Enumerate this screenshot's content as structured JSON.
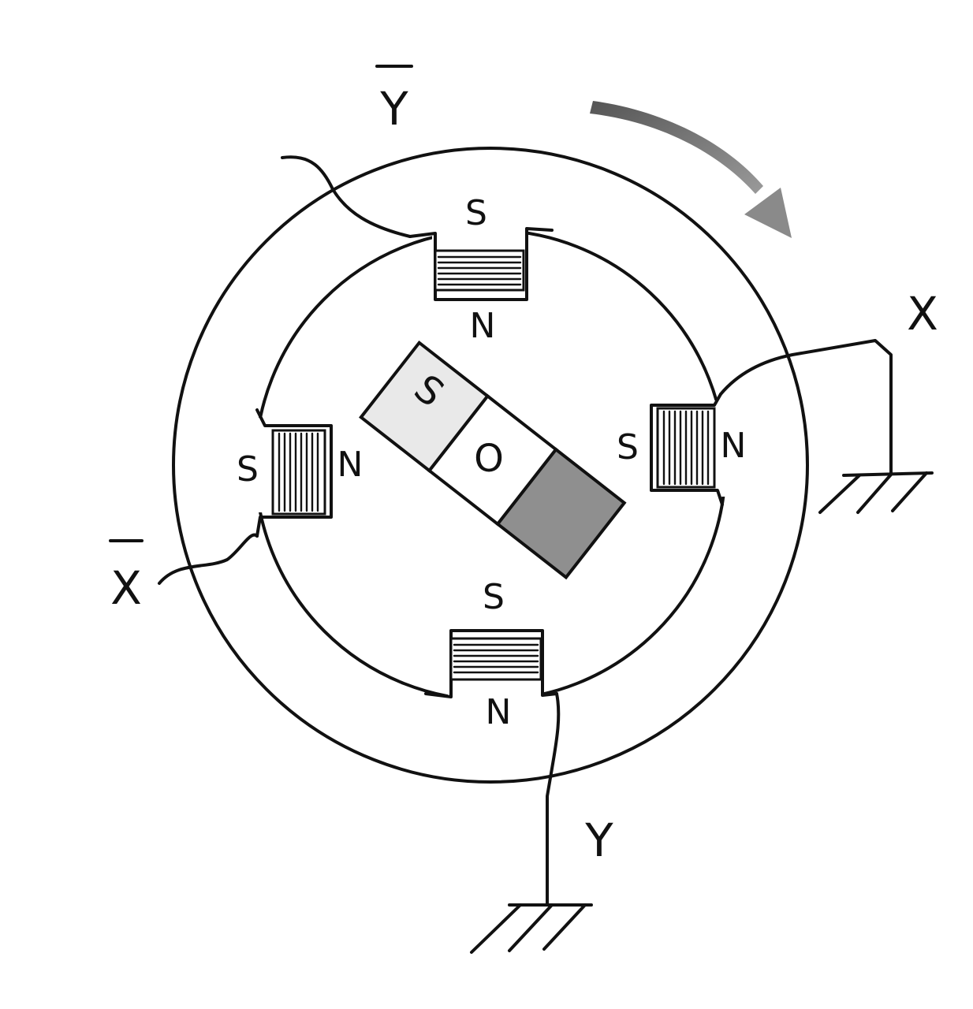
{
  "terminals": {
    "y_bar": "Y",
    "x": "X",
    "x_bar": "X",
    "y": "Y"
  },
  "poles": {
    "top": {
      "outer": "S",
      "inner": "N"
    },
    "left": {
      "outer": "S",
      "inner": "N"
    },
    "right": {
      "inner": "S",
      "outer": "N"
    },
    "bottom": {
      "outer": "S",
      "inner": "N"
    }
  },
  "rotor": {
    "south": "S",
    "center": "O"
  },
  "colors": {
    "ink": "#111111",
    "rotor_south_fill": "#e9e9e9",
    "rotor_north_fill": "#8f8f8f",
    "arrow": "#7a7a7a"
  },
  "icons": {
    "rotation_arrow": "curved-arrow-clockwise",
    "ground": "ground-symbol"
  }
}
